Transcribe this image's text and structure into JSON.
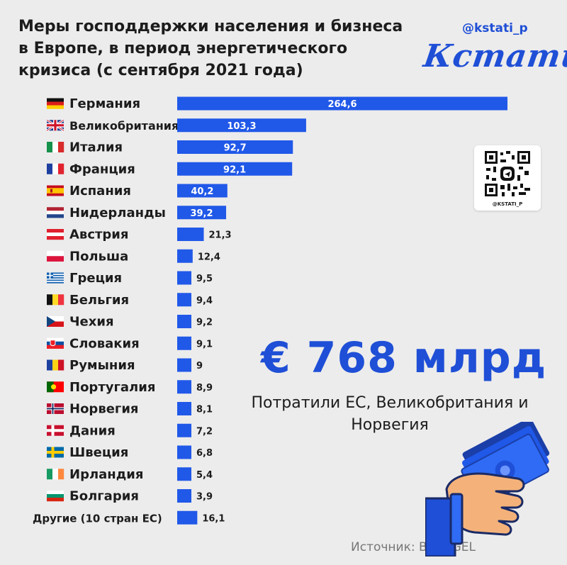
{
  "title": "Меры господдержки населения и бизнеса в Европе, в период энергетического кризиса (с сентября 2021 года)",
  "header": {
    "handle": "@kstati_p",
    "logo": "Кстати,"
  },
  "qr": {
    "label": "@KSTATI_P"
  },
  "summary": {
    "total": "€ 768 млрд",
    "caption": "Потратили ЕС, Великобритания и Норвегия"
  },
  "source": "Источник: BRUEGEL",
  "colors": {
    "accent": "#1f4fd6",
    "bar": "#2058e8",
    "background": "#ececec"
  },
  "chart_data": {
    "type": "bar",
    "orientation": "horizontal",
    "title": "Меры господдержки населения и бизнеса в Европе, в период энергетического кризиса (с сентября 2021 года)",
    "categories": [
      "Германия",
      "Великобритания",
      "Италия",
      "Франция",
      "Испания",
      "Нидерланды",
      "Австрия",
      "Польша",
      "Греция",
      "Бельгия",
      "Чехия",
      "Словакия",
      "Румыния",
      "Португалия",
      "Норвегия",
      "Дания",
      "Швеция",
      "Ирландия",
      "Болгария",
      "Другие (10 стран ЕС)"
    ],
    "values": [
      264.6,
      103.3,
      92.7,
      92.1,
      40.2,
      39.2,
      21.3,
      12.4,
      9.5,
      9.4,
      9.2,
      9.1,
      9,
      8.9,
      8.1,
      7.2,
      6.8,
      5.4,
      3.9,
      16.1
    ],
    "value_labels": [
      "264,6",
      "103,3",
      "92,7",
      "92,1",
      "40,2",
      "39,2",
      "21,3",
      "12,4",
      "9,5",
      "9,4",
      "9,2",
      "9,1",
      "9",
      "8,9",
      "8,1",
      "7,2",
      "6,8",
      "5,4",
      "3,9",
      "16,1"
    ],
    "flags": [
      "de",
      "gb",
      "it",
      "fr",
      "es",
      "nl",
      "at",
      "pl",
      "gr",
      "be",
      "cz",
      "sk",
      "ro",
      "pt",
      "no",
      "dk",
      "se",
      "ie",
      "bg",
      ""
    ],
    "xlim": [
      0,
      264.6
    ],
    "grid": false,
    "legend": "none"
  }
}
